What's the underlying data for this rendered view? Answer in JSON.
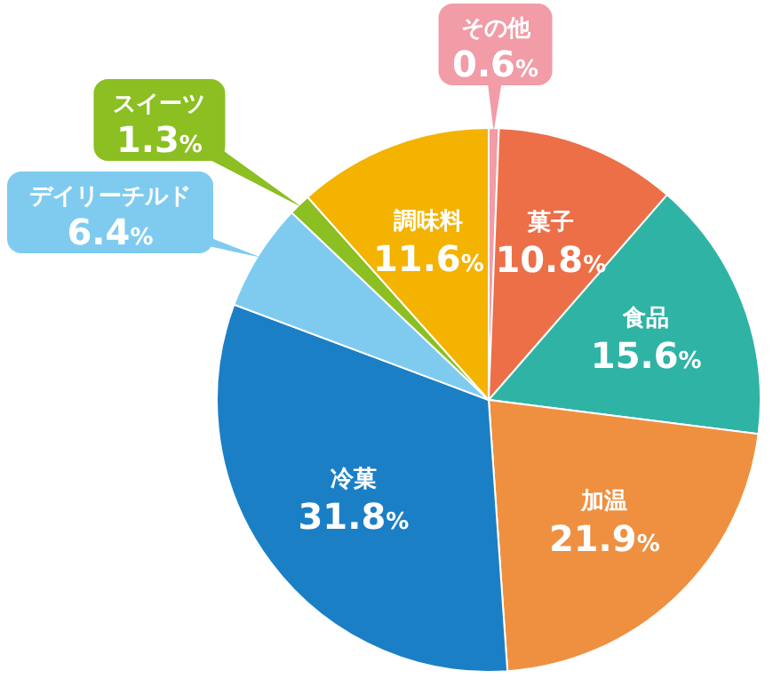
{
  "chart_data": {
    "type": "pie",
    "categories": [
      "その他",
      "菓子",
      "食品",
      "加温",
      "冷菓",
      "デイリーチルド",
      "スイーツ",
      "調味料"
    ],
    "values": [
      0.6,
      10.8,
      15.6,
      21.9,
      31.8,
      6.4,
      1.3,
      11.6
    ],
    "colors": [
      "#f19ca7",
      "#ec6f48",
      "#2fb3a5",
      "#ef9041",
      "#1b7fc6",
      "#7fcbf0",
      "#8bbf22",
      "#f4b300"
    ],
    "value_labels": [
      "0.6%",
      "10.8%",
      "15.6%",
      "21.9%",
      "31.8%",
      "6.4%",
      "1.3%",
      "11.6%"
    ],
    "legend": false
  }
}
